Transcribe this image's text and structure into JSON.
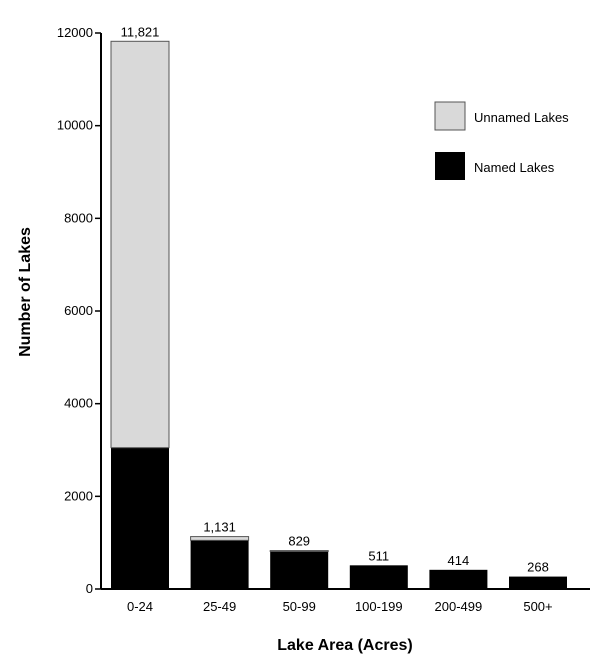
{
  "chart_data": {
    "type": "bar",
    "stacked": true,
    "categories": [
      "0-24",
      "25-49",
      "50-99",
      "100-199",
      "200-499",
      "500+"
    ],
    "series": [
      {
        "name": "Named Lakes",
        "color": "#000000",
        "values": [
          3050,
          1050,
          810,
          511,
          414,
          268
        ]
      },
      {
        "name": "Unnamed Lakes",
        "color": "#d9d9d9",
        "values": [
          8771,
          81,
          19,
          0,
          0,
          0
        ]
      }
    ],
    "totals": [
      11821,
      1131,
      829,
      511,
      414,
      268
    ],
    "total_labels": [
      "11,821",
      "1,131",
      "829",
      "511",
      "414",
      "268"
    ],
    "xlabel": "Lake Area (Acres)",
    "ylabel": "Number of Lakes",
    "ylim": [
      0,
      12000
    ],
    "yticks": [
      0,
      2000,
      4000,
      6000,
      8000,
      10000,
      12000
    ],
    "legend": {
      "placement": "top-right",
      "entries": [
        "Unnamed Lakes",
        "Named Lakes"
      ]
    },
    "grid": false
  }
}
